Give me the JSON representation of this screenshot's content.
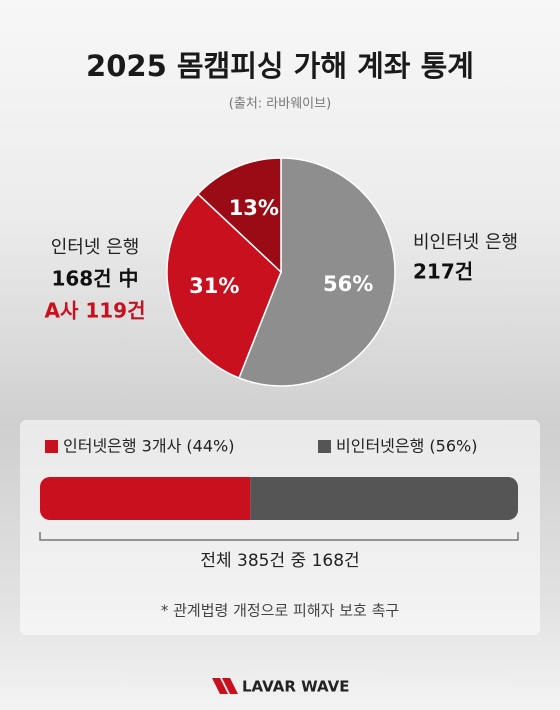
{
  "title": "2025 몸캠피싱 가해 계좌 통계",
  "source": "(출처: 라바웨이브)",
  "chart_data": [
    {
      "type": "pie",
      "values": [
        56,
        31,
        13
      ],
      "value_labels": [
        "56%",
        "31%",
        "13%"
      ],
      "colors": [
        "#8e8e8e",
        "#c8101e",
        "#9a0b15"
      ],
      "annotations": {
        "left": [
          "인터넷 은행",
          "168건 中",
          "A사 119건"
        ],
        "right": [
          "비인터넷 은행",
          "217건"
        ]
      }
    },
    {
      "type": "stacked-bar",
      "xlim": [
        0,
        100
      ],
      "series": [
        {
          "name": "인터넷은행 3개사 (44%)",
          "color": "#c8101e",
          "values": [
            44
          ]
        },
        {
          "name": "비인터넷은행 (56%)",
          "color": "#555555",
          "values": [
            56
          ]
        }
      ],
      "annotation": "전체 385건 중 168건"
    }
  ],
  "footnote": "* 관계법령 개정으로 피해자 보호 촉구",
  "logo": "LAVAR WAVE"
}
